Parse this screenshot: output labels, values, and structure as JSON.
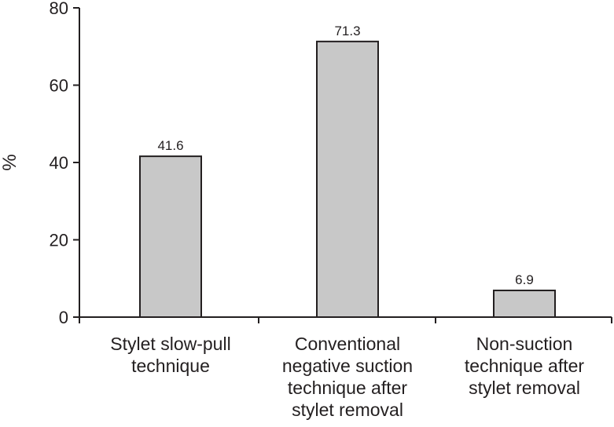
{
  "chart_data": {
    "type": "bar",
    "title": "",
    "xlabel": "",
    "ylabel": "%",
    "ylim": [
      0,
      80
    ],
    "yticks": [
      0,
      20,
      40,
      60,
      80
    ],
    "grid": false,
    "categories": [
      [
        "Stylet slow-pull",
        "technique"
      ],
      [
        "Conventional",
        "negative suction",
        "technique after",
        "stylet removal"
      ],
      [
        "Non-suction",
        "technique after",
        "stylet removal"
      ]
    ],
    "values": [
      41.6,
      71.3,
      6.9
    ],
    "data_labels": [
      "41.6",
      "71.3",
      "6.9"
    ],
    "colors": {
      "bar_fill": "#c8c8c8",
      "bar_stroke": "#231f20",
      "axis": "#231f20"
    }
  }
}
